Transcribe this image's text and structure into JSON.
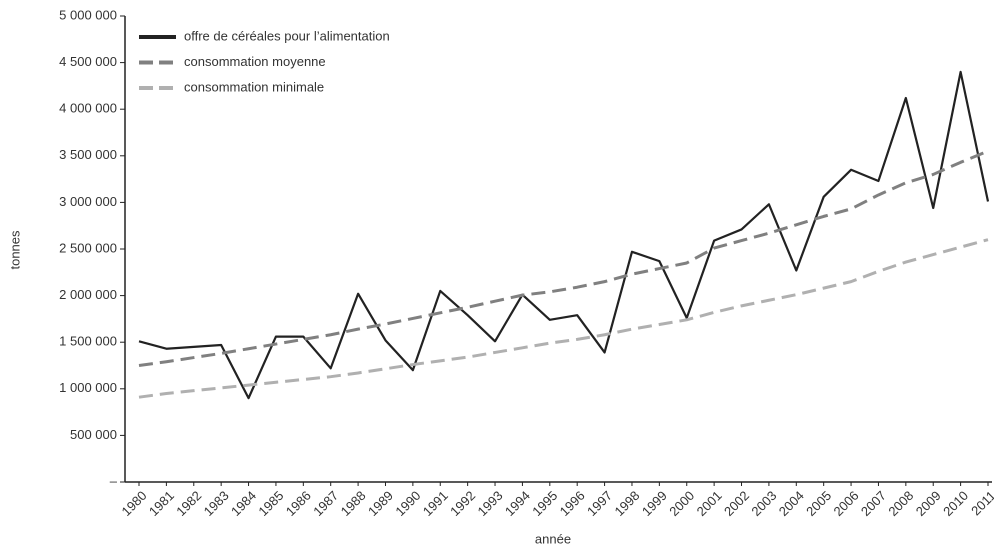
{
  "chart_data": {
    "type": "line",
    "x_label": "année",
    "y_label": "tonnes",
    "categories": [
      "1980",
      "1981",
      "1982",
      "1983",
      "1984",
      "1985",
      "1986",
      "1987",
      "1988",
      "1989",
      "1990",
      "1991",
      "1992",
      "1993",
      "1994",
      "1995",
      "1996",
      "1997",
      "1998",
      "1999",
      "2000",
      "2001",
      "2002",
      "2003",
      "2004",
      "2005",
      "2006",
      "2007",
      "2008",
      "2009",
      "2010",
      "2011"
    ],
    "series": [
      {
        "name": "offre de céréales pour l’alimentation",
        "color": "#222222",
        "style": "solid",
        "values": [
          1510000,
          1430000,
          1450000,
          1470000,
          900000,
          1560000,
          1560000,
          1220000,
          2020000,
          1520000,
          1200000,
          2050000,
          1790000,
          1510000,
          2010000,
          1740000,
          1790000,
          1390000,
          2470000,
          2370000,
          1760000,
          2590000,
          2710000,
          2980000,
          2270000,
          3060000,
          3350000,
          3230000,
          4120000,
          2940000,
          4400000,
          3010000
        ]
      },
      {
        "name": "consommation moyenne",
        "color": "#808080",
        "style": "dashed",
        "values": [
          1250000,
          1290000,
          1335000,
          1380000,
          1430000,
          1480000,
          1530000,
          1580000,
          1640000,
          1695000,
          1755000,
          1815000,
          1875000,
          1940000,
          2005000,
          2040000,
          2090000,
          2150000,
          2230000,
          2290000,
          2350000,
          2510000,
          2590000,
          2670000,
          2760000,
          2850000,
          2930000,
          3080000,
          3210000,
          3300000,
          3430000,
          3550000
        ]
      },
      {
        "name": "consommation minimale",
        "color": "#b0b0b0",
        "style": "dashed",
        "values": [
          910000,
          950000,
          980000,
          1010000,
          1040000,
          1070000,
          1100000,
          1130000,
          1170000,
          1215000,
          1260000,
          1300000,
          1340000,
          1390000,
          1440000,
          1490000,
          1530000,
          1580000,
          1640000,
          1690000,
          1740000,
          1820000,
          1890000,
          1950000,
          2010000,
          2080000,
          2150000,
          2260000,
          2360000,
          2440000,
          2520000,
          2600000
        ]
      }
    ],
    "ylim": [
      0,
      5000000
    ],
    "yticks": [
      {
        "value": 0,
        "label": "–"
      },
      {
        "value": 500000,
        "label": "500 000"
      },
      {
        "value": 1000000,
        "label": "1 000 000"
      },
      {
        "value": 1500000,
        "label": "1 500 000"
      },
      {
        "value": 2000000,
        "label": "2 000 000"
      },
      {
        "value": 2500000,
        "label": "2 500 000"
      },
      {
        "value": 3000000,
        "label": "3 000 000"
      },
      {
        "value": 3500000,
        "label": "3 500 000"
      },
      {
        "value": 4000000,
        "label": "4 000 000"
      },
      {
        "value": 4500000,
        "label": "4 500 000"
      },
      {
        "value": 5000000,
        "label": "5 000 000"
      }
    ],
    "grid": false,
    "legend": "top-left"
  }
}
